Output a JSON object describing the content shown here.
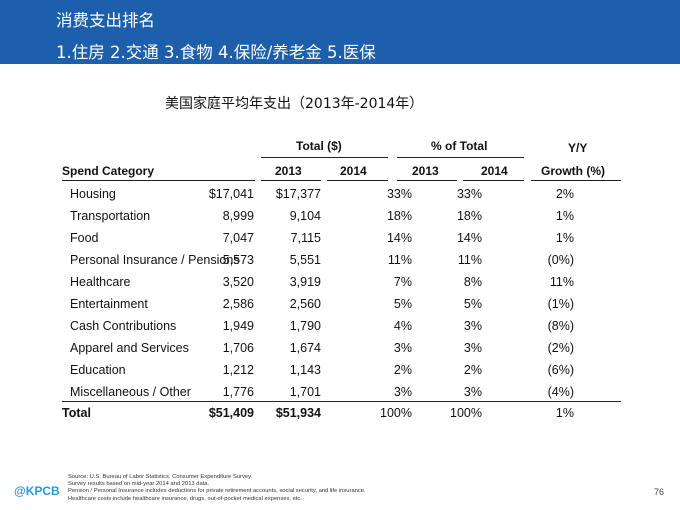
{
  "header": {
    "title": "消费支出排名",
    "subtitle": "1.住房 2.交通 3.食物 4.保险/养老金 5.医保"
  },
  "table": {
    "caption": "美国家庭平均年支出（2013年-2014年）",
    "group_headers": {
      "total": "Total ($)",
      "pct": "% of Total",
      "yy": "Y/Y"
    },
    "columns": {
      "category": "Spend Category",
      "t2013": "2013",
      "t2014": "2014",
      "p2013": "2013",
      "p2014": "2014",
      "growth": "Growth (%)"
    },
    "rows": [
      {
        "category": "Housing",
        "t2013": "$17,041",
        "t2014": "$17,377",
        "p2013": "33%",
        "p2014": "33%",
        "growth": "2%"
      },
      {
        "category": "Transportation",
        "t2013": "8,999",
        "t2014": "9,104",
        "p2013": "18%",
        "p2014": "18%",
        "growth": "1%"
      },
      {
        "category": "Food",
        "t2013": "7,047",
        "t2014": "7,115",
        "p2013": "14%",
        "p2014": "14%",
        "growth": "1%"
      },
      {
        "category": "Personal Insurance / Pensions",
        "t2013": "5,573",
        "t2014": "5,551",
        "p2013": "11%",
        "p2014": "11%",
        "growth": "(0%)"
      },
      {
        "category": "Healthcare",
        "t2013": "3,520",
        "t2014": "3,919",
        "p2013": "7%",
        "p2014": "8%",
        "growth": "11%"
      },
      {
        "category": "Entertainment",
        "t2013": "2,586",
        "t2014": "2,560",
        "p2013": "5%",
        "p2014": "5%",
        "growth": "(1%)"
      },
      {
        "category": "Cash Contributions",
        "t2013": "1,949",
        "t2014": "1,790",
        "p2013": "4%",
        "p2014": "3%",
        "growth": "(8%)"
      },
      {
        "category": "Apparel and Services",
        "t2013": "1,706",
        "t2014": "1,674",
        "p2013": "3%",
        "p2014": "3%",
        "growth": "(2%)"
      },
      {
        "category": "Education",
        "t2013": "1,212",
        "t2014": "1,143",
        "p2013": "2%",
        "p2014": "2%",
        "growth": "(6%)"
      },
      {
        "category": "Miscellaneous / Other",
        "t2013": "1,776",
        "t2014": "1,701",
        "p2013": "3%",
        "p2014": "3%",
        "growth": "(4%)"
      }
    ],
    "total": {
      "category": "Total",
      "t2013": "$51,409",
      "t2014": "$51,934",
      "p2013": "100%",
      "p2014": "100%",
      "growth": "1%"
    }
  },
  "footer": {
    "logo": "@KPCB",
    "notes": [
      "Source: U.S. Bureau of Labor Statistics, Consumer Expenditure Survey.",
      "Survey results based on mid-year 2014 and 2013 data.",
      "Pension / Personal Insurance includes deductions for private retirement accounts, social security, and life insurance.",
      "Healthcare costs include healthcare insurance, drugs, out-of-pocket medical expenses, etc."
    ],
    "page_number": "76"
  },
  "colors": {
    "header_bg": "#1d5faa",
    "header_text": "#ffffff",
    "logo": "#2a9ad6"
  }
}
